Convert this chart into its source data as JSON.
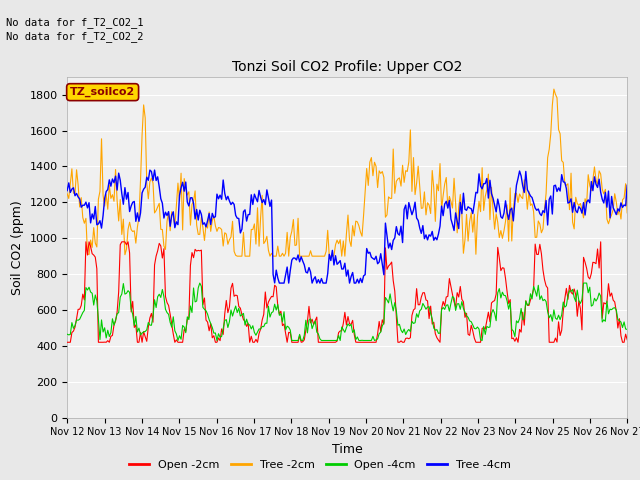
{
  "title": "Tonzi Soil CO2 Profile: Upper CO2",
  "xlabel": "Time",
  "ylabel": "Soil CO2 (ppm)",
  "ylim": [
    0,
    1900
  ],
  "yticks": [
    0,
    200,
    400,
    600,
    800,
    1000,
    1200,
    1400,
    1600,
    1800
  ],
  "x_labels": [
    "Nov 12",
    "Nov 13",
    "Nov 14",
    "Nov 15",
    "Nov 16",
    "Nov 17",
    "Nov 18",
    "Nov 19",
    "Nov 20",
    "Nov 21",
    "Nov 22",
    "Nov 23",
    "Nov 24",
    "Nov 25",
    "Nov 26",
    "Nov 27"
  ],
  "no_data_text": [
    "No data for f_T2_CO2_1",
    "No data for f_T2_CO2_2"
  ],
  "legend_box_label": "TZ_soilco2",
  "legend_box_color": "#FFD700",
  "legend_box_text_color": "#8B0000",
  "series_colors": {
    "open2": "#FF0000",
    "tree2": "#FFA500",
    "open4": "#00CC00",
    "tree4": "#0000FF"
  },
  "legend_labels": [
    "Open -2cm",
    "Tree -2cm",
    "Open -4cm",
    "Tree -4cm"
  ],
  "background_color": "#E8E8E8",
  "plot_bg_color": "#F0F0F0",
  "grid_color": "#FFFFFF"
}
